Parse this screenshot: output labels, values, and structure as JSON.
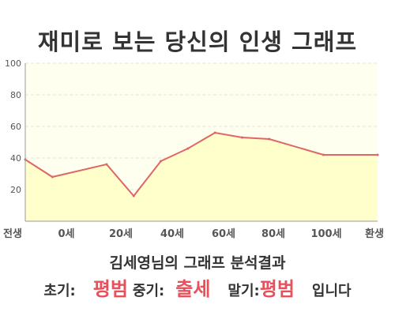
{
  "page": {
    "title": "재미로 보는 당신의 인생 그래프"
  },
  "chart_data": {
    "type": "area",
    "x_ticks": [
      "전생",
      "0세",
      "20세",
      "40세",
      "60세",
      "80세",
      "100세",
      "환생"
    ],
    "y_ticks": [
      20,
      40,
      60,
      80,
      100
    ],
    "ylim": [
      0,
      100
    ],
    "grid": true,
    "xlim": [
      -10,
      120
    ],
    "points": [
      {
        "x": -10,
        "y": 39
      },
      {
        "x": 0,
        "y": 28
      },
      {
        "x": 20,
        "y": 36
      },
      {
        "x": 30,
        "y": 16
      },
      {
        "x": 40,
        "y": 38
      },
      {
        "x": 50,
        "y": 46
      },
      {
        "x": 60,
        "y": 56
      },
      {
        "x": 70,
        "y": 53
      },
      {
        "x": 80,
        "y": 52
      },
      {
        "x": 100,
        "y": 42
      },
      {
        "x": 120,
        "y": 42
      }
    ],
    "line_color": "#e06666",
    "fill_color": "#ffffcc"
  },
  "result": {
    "title": "김세영님의 그래프 분석결과",
    "early_label": "초기:",
    "early_value": "평범",
    "mid_label": "중기:",
    "mid_value": "출세",
    "late_label": "말기:",
    "late_value": "평범",
    "suffix": "입니다"
  }
}
